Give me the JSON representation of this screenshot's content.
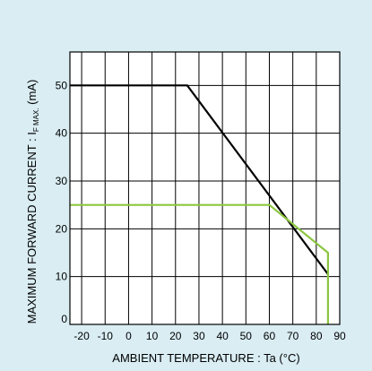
{
  "colors": {
    "background": "#d9edf3",
    "plot_area": "#ffffff",
    "grid": "#000000",
    "series_black": "#000000",
    "series_green": "#8cc641"
  },
  "chart_data": {
    "type": "line",
    "xlabel": "AMBIENT TEMPERATURE : Ta (°C)",
    "ylabel_main": "MAXIMUM  FORWARD  CURRENT : I",
    "ylabel_sub": "F MAX.",
    "ylabel_unit": "(mA)",
    "xlim": [
      -25,
      90
    ],
    "ylim": [
      0,
      57
    ],
    "x_ticks": [
      -20,
      -10,
      0,
      10,
      20,
      30,
      40,
      50,
      60,
      70,
      80,
      90
    ],
    "y_ticks": [
      0,
      10,
      20,
      30,
      40,
      50
    ],
    "grid": true,
    "series": [
      {
        "color": "#000000",
        "points": [
          [
            -25,
            50
          ],
          [
            25,
            50
          ],
          [
            85,
            10.5
          ]
        ]
      },
      {
        "color": "#8cc641",
        "points": [
          [
            -25,
            25
          ],
          [
            60,
            25
          ],
          [
            85,
            15
          ],
          [
            85,
            0
          ]
        ]
      }
    ]
  }
}
